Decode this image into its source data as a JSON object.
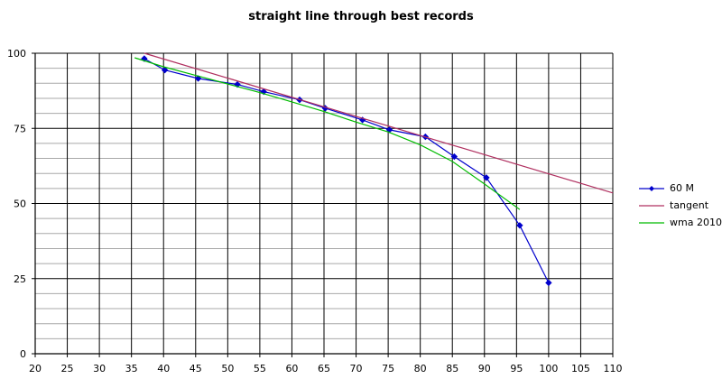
{
  "chart_data": {
    "type": "line",
    "title": "straight line through best records",
    "xlabel": "",
    "ylabel": "",
    "xlim": [
      20,
      110
    ],
    "ylim": [
      0,
      100
    ],
    "x_ticks": [
      20,
      25,
      30,
      35,
      40,
      45,
      50,
      55,
      60,
      65,
      70,
      75,
      80,
      85,
      90,
      95,
      100,
      105,
      110
    ],
    "y_ticks": [
      0,
      25,
      50,
      75,
      100
    ],
    "grid": true,
    "legend_position": "right",
    "series": [
      {
        "name": "60 M",
        "color": "#0000cc",
        "marker": "diamond",
        "x": [
          37,
          40.2,
          45.4,
          51.5,
          55.6,
          61.2,
          65.2,
          71,
          75.2,
          80.8,
          85.3,
          90.3,
          95.5,
          100
        ],
        "y": [
          98.2,
          94.4,
          91.6,
          89.6,
          87.2,
          84.5,
          81.7,
          77.8,
          74.5,
          72.2,
          65.6,
          58.6,
          42.7,
          23.6
        ]
      },
      {
        "name": "tangent",
        "color": "#b03060",
        "marker": "none",
        "x": [
          37,
          110
        ],
        "y": [
          100,
          53.5
        ]
      },
      {
        "name": "wma 2010",
        "color": "#00bb00",
        "marker": "none",
        "x": [
          35.5,
          40,
          45,
          50,
          55,
          60,
          65,
          70,
          75,
          80,
          85,
          90,
          95.5
        ],
        "y": [
          98.5,
          95.5,
          92.6,
          89.8,
          86.9,
          83.8,
          80.6,
          77.1,
          73.8,
          69.5,
          64.0,
          56.5,
          48.0
        ]
      }
    ]
  }
}
